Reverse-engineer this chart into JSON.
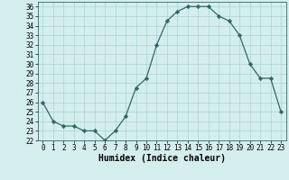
{
  "x": [
    0,
    1,
    2,
    3,
    4,
    5,
    6,
    7,
    8,
    9,
    10,
    11,
    12,
    13,
    14,
    15,
    16,
    17,
    18,
    19,
    20,
    21,
    22,
    23
  ],
  "y": [
    26,
    24,
    23.5,
    23.5,
    23,
    23,
    22,
    23,
    24.5,
    27.5,
    28.5,
    32,
    34.5,
    35.5,
    36,
    36,
    36,
    35,
    34.5,
    33,
    30,
    28.5,
    28.5,
    25
  ],
  "line_color": "#336666",
  "marker": "D",
  "marker_size": 2.2,
  "bg_color": "#d4eeee",
  "grid_color": "#a8d4d4",
  "xlabel": "Humidex (Indice chaleur)",
  "ylim": [
    22,
    36.5
  ],
  "xlim": [
    -0.5,
    23.5
  ],
  "yticks": [
    22,
    23,
    24,
    25,
    26,
    27,
    28,
    29,
    30,
    31,
    32,
    33,
    34,
    35,
    36
  ],
  "xticks": [
    0,
    1,
    2,
    3,
    4,
    5,
    6,
    7,
    8,
    9,
    10,
    11,
    12,
    13,
    14,
    15,
    16,
    17,
    18,
    19,
    20,
    21,
    22,
    23
  ],
  "tick_label_fontsize": 5.5,
  "xlabel_fontsize": 7,
  "linewidth": 0.9
}
